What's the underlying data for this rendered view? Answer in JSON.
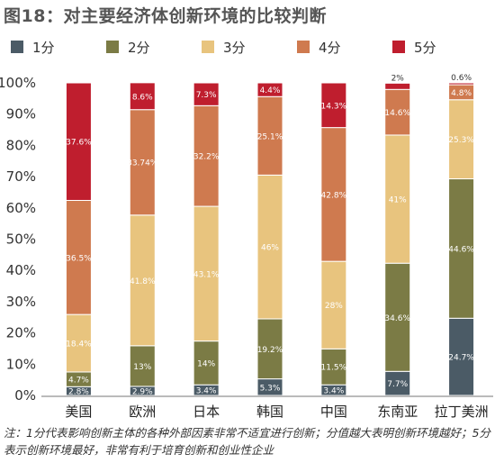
{
  "title": "图18：对主要经济体创新环境的比较判断",
  "colors": {
    "1分": "#4b5b66",
    "2分": "#7b7b45",
    "3分": "#e8c47e",
    "4分": "#cf7a4f",
    "5分": "#bf1e2e"
  },
  "chart_data": {
    "type": "bar",
    "stacked": true,
    "categories": [
      "美国",
      "欧洲",
      "日本",
      "韩国",
      "中国",
      "东南亚",
      "拉丁美洲"
    ],
    "series": [
      {
        "name": "1分",
        "values": [
          2.8,
          2.9,
          3.4,
          5.3,
          3.4,
          7.7,
          24.7
        ],
        "labels": [
          "2.8%",
          "2.9%",
          "3.4%",
          "5.3%",
          "3.4%",
          "7.7%",
          "24.7%"
        ]
      },
      {
        "name": "2分",
        "values": [
          4.7,
          13,
          14,
          19.2,
          11.5,
          34.6,
          44.6
        ],
        "labels": [
          "4.7%",
          "13%",
          "14%",
          "19.2%",
          "11.5%",
          "34.6%",
          "44.6%"
        ]
      },
      {
        "name": "3分",
        "values": [
          18.4,
          41.8,
          43.1,
          46,
          28,
          41,
          25.3
        ],
        "labels": [
          "18.4%",
          "41.8%",
          "43.1%",
          "46%",
          "28%",
          "41%",
          "25.3%"
        ]
      },
      {
        "name": "4分",
        "values": [
          36.5,
          33.74,
          32.2,
          25.1,
          42.8,
          14.6,
          4.8
        ],
        "labels": [
          "36.5%",
          "33.74%",
          "32.2%",
          "25.1%",
          "42.8%",
          "14.6%",
          "4.8%"
        ]
      },
      {
        "name": "5分",
        "values": [
          37.6,
          8.6,
          7.3,
          4.4,
          14.3,
          2,
          0.6
        ],
        "labels": [
          "37.6%",
          "8.6%",
          "7.3%",
          "4.4%",
          "14.3%",
          "2%",
          "0.6%"
        ]
      }
    ],
    "ylim": [
      0,
      100
    ],
    "yticks": [
      "0%",
      "10%",
      "20%",
      "30%",
      "40%",
      "50%",
      "60%",
      "70%",
      "80%",
      "90%",
      "100%"
    ],
    "legend": "top"
  },
  "note": "注：1分代表影响创新主体的各种外部因素非常不适宜进行创新；分值越大表明创新环境越好；5分表示创新环境最好，非常有利于培育创新和创业性企业"
}
